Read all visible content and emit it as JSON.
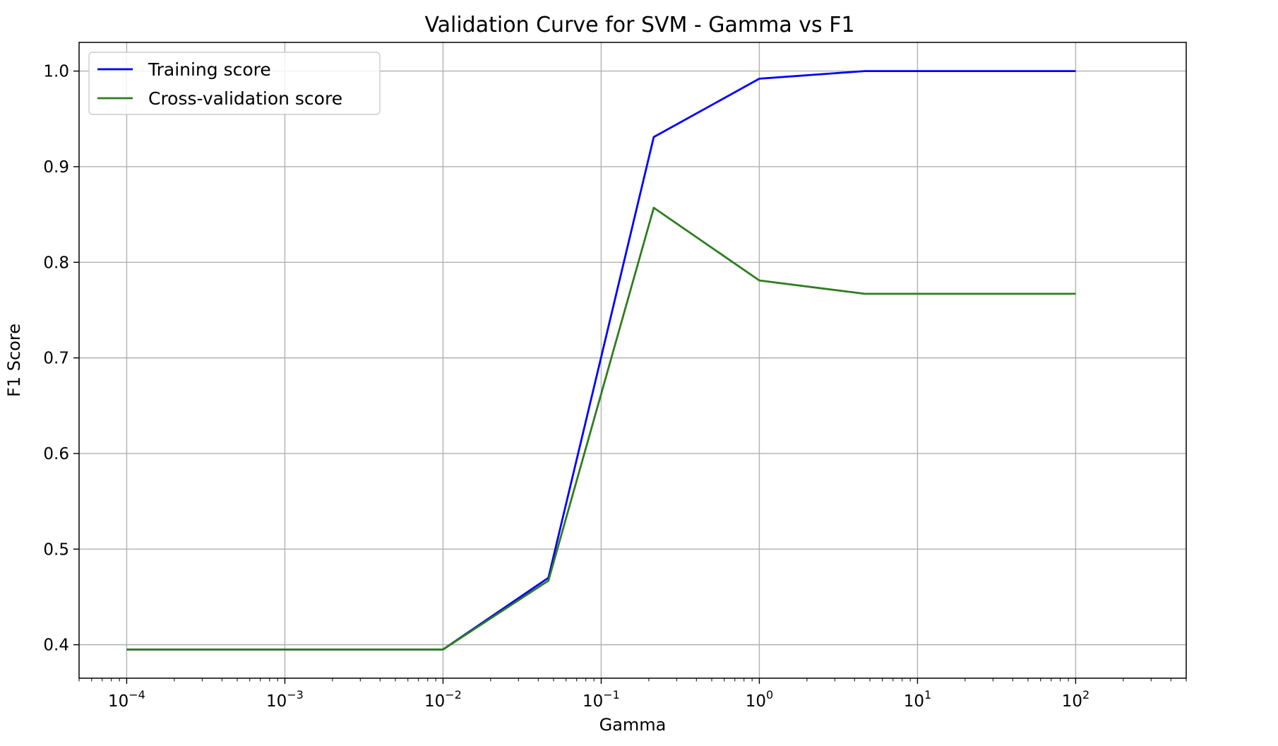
{
  "chart_data": {
    "type": "line",
    "title": "Validation Curve for SVM - Gamma vs F1",
    "xlabel": "Gamma",
    "ylabel": "F1 Score",
    "xscale": "log",
    "xlim": [
      5e-05,
      500
    ],
    "ylim": [
      0.365,
      1.03
    ],
    "grid": true,
    "legend_position": "top-left",
    "x": [
      0.0001,
      0.000464,
      0.00215,
      0.01,
      0.0464,
      0.215,
      1,
      4.64,
      21.5,
      100
    ],
    "series": [
      {
        "name": "Training score",
        "color": "#0000ff",
        "values": [
          0.395,
          0.395,
          0.395,
          0.395,
          0.47,
          0.931,
          0.992,
          1.0,
          1.0,
          1.0
        ]
      },
      {
        "name": "Cross-validation score",
        "color": "#2e7d1f",
        "values": [
          0.395,
          0.395,
          0.395,
          0.395,
          0.467,
          0.857,
          0.781,
          0.767,
          0.767,
          0.767
        ]
      }
    ],
    "yticks": [
      "0.4",
      "0.5",
      "0.6",
      "0.7",
      "0.8",
      "0.9",
      "1.0"
    ],
    "xticks": [
      {
        "base": "10",
        "exp": "−4"
      },
      {
        "base": "10",
        "exp": "−3"
      },
      {
        "base": "10",
        "exp": "−2"
      },
      {
        "base": "10",
        "exp": "−1"
      },
      {
        "base": "10",
        "exp": "0"
      },
      {
        "base": "10",
        "exp": "1"
      },
      {
        "base": "10",
        "exp": "2"
      }
    ]
  }
}
